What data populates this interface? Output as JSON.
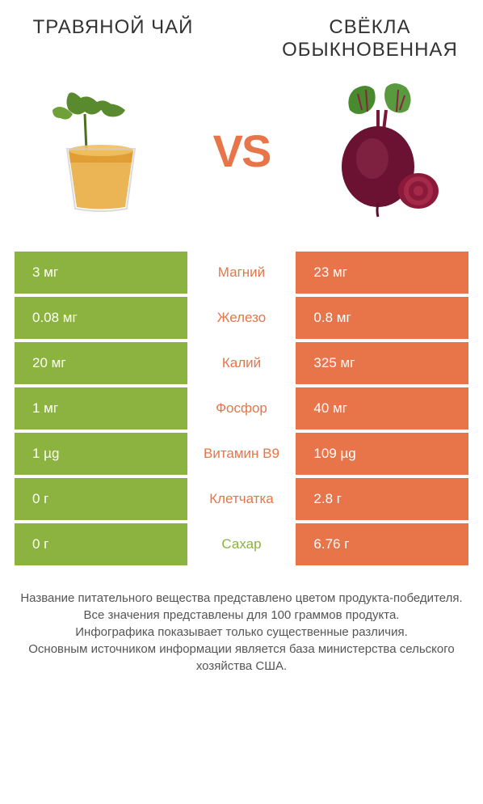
{
  "left_title": "ТРАВЯНОЙ ЧАЙ",
  "right_title": "СВЁКЛА ОБЫКНОВЕННАЯ",
  "vs_label": "VS",
  "colors": {
    "left": "#8cb23f",
    "right": "#e8744a",
    "mid_left_text": "#8cb23f",
    "mid_right_text": "#e8744a"
  },
  "rows": [
    {
      "left": "3 мг",
      "mid": "Магний",
      "right": "23 мг",
      "winner": "right"
    },
    {
      "left": "0.08 мг",
      "mid": "Железо",
      "right": "0.8 мг",
      "winner": "right"
    },
    {
      "left": "20 мг",
      "mid": "Калий",
      "right": "325 мг",
      "winner": "right"
    },
    {
      "left": "1 мг",
      "mid": "Фосфор",
      "right": "40 мг",
      "winner": "right"
    },
    {
      "left": "1 µg",
      "mid": "Витамин B9",
      "right": "109 µg",
      "winner": "right"
    },
    {
      "left": "0 г",
      "mid": "Клетчатка",
      "right": "2.8 г",
      "winner": "right"
    },
    {
      "left": "0 г",
      "mid": "Сахар",
      "right": "6.76 г",
      "winner": "left"
    }
  ],
  "footer_lines": [
    "Название питательного вещества представлено цветом продукта-победителя.",
    "Все значения представлены для 100 граммов продукта.",
    "Инфографика показывает только существенные различия.",
    "Основным источником информации является база министерства сельского хозяйства США."
  ]
}
